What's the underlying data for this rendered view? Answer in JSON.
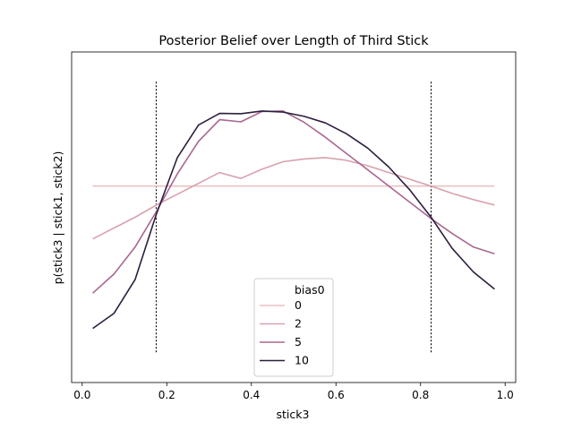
{
  "chart_data": {
    "type": "line",
    "title": "Posterior Belief over Length of Third Stick",
    "xlabel": "stick3",
    "ylabel": "p(stick3 | stick1, stick2)",
    "xlim": [
      -0.025,
      1.025
    ],
    "ylim": [
      0,
      1
    ],
    "xticks": [
      0.0,
      0.2,
      0.4,
      0.6,
      0.8,
      1.0
    ],
    "xtick_labels": [
      "0.0",
      "0.2",
      "0.4",
      "0.6",
      "0.8",
      "1.0"
    ],
    "yticks_shown": false,
    "grid": false,
    "legend": {
      "title": "bias0",
      "placement": "lower center"
    },
    "vlines": [
      0.175,
      0.825
    ],
    "x": [
      0.025,
      0.075,
      0.125,
      0.175,
      0.225,
      0.275,
      0.325,
      0.375,
      0.425,
      0.475,
      0.525,
      0.575,
      0.625,
      0.675,
      0.725,
      0.775,
      0.825,
      0.875,
      0.925,
      0.975
    ],
    "series": [
      {
        "name": "0",
        "color": "#ebc2bf",
        "values": [
          0.615,
          0.615,
          0.615,
          0.615,
          0.615,
          0.615,
          0.615,
          0.615,
          0.615,
          0.615,
          0.615,
          0.615,
          0.615,
          0.615,
          0.615,
          0.615,
          0.615,
          0.615,
          0.615,
          0.615
        ]
      },
      {
        "name": "2",
        "color": "#d8a1ad",
        "values": [
          0.42,
          0.46,
          0.5,
          0.545,
          0.585,
          0.625,
          0.665,
          0.643,
          0.677,
          0.705,
          0.715,
          0.72,
          0.71,
          0.69,
          0.665,
          0.64,
          0.615,
          0.588,
          0.565,
          0.545
        ]
      },
      {
        "name": "5",
        "color": "#a8678f",
        "values": [
          0.22,
          0.29,
          0.39,
          0.52,
          0.66,
          0.78,
          0.86,
          0.852,
          0.89,
          0.892,
          0.85,
          0.795,
          0.735,
          0.675,
          0.615,
          0.555,
          0.495,
          0.44,
          0.39,
          0.365
        ]
      },
      {
        "name": "10",
        "color": "#2d1e3e",
        "values": [
          0.09,
          0.145,
          0.27,
          0.51,
          0.72,
          0.84,
          0.883,
          0.882,
          0.892,
          0.888,
          0.872,
          0.848,
          0.808,
          0.755,
          0.685,
          0.6,
          0.5,
          0.385,
          0.298,
          0.235
        ]
      }
    ]
  }
}
